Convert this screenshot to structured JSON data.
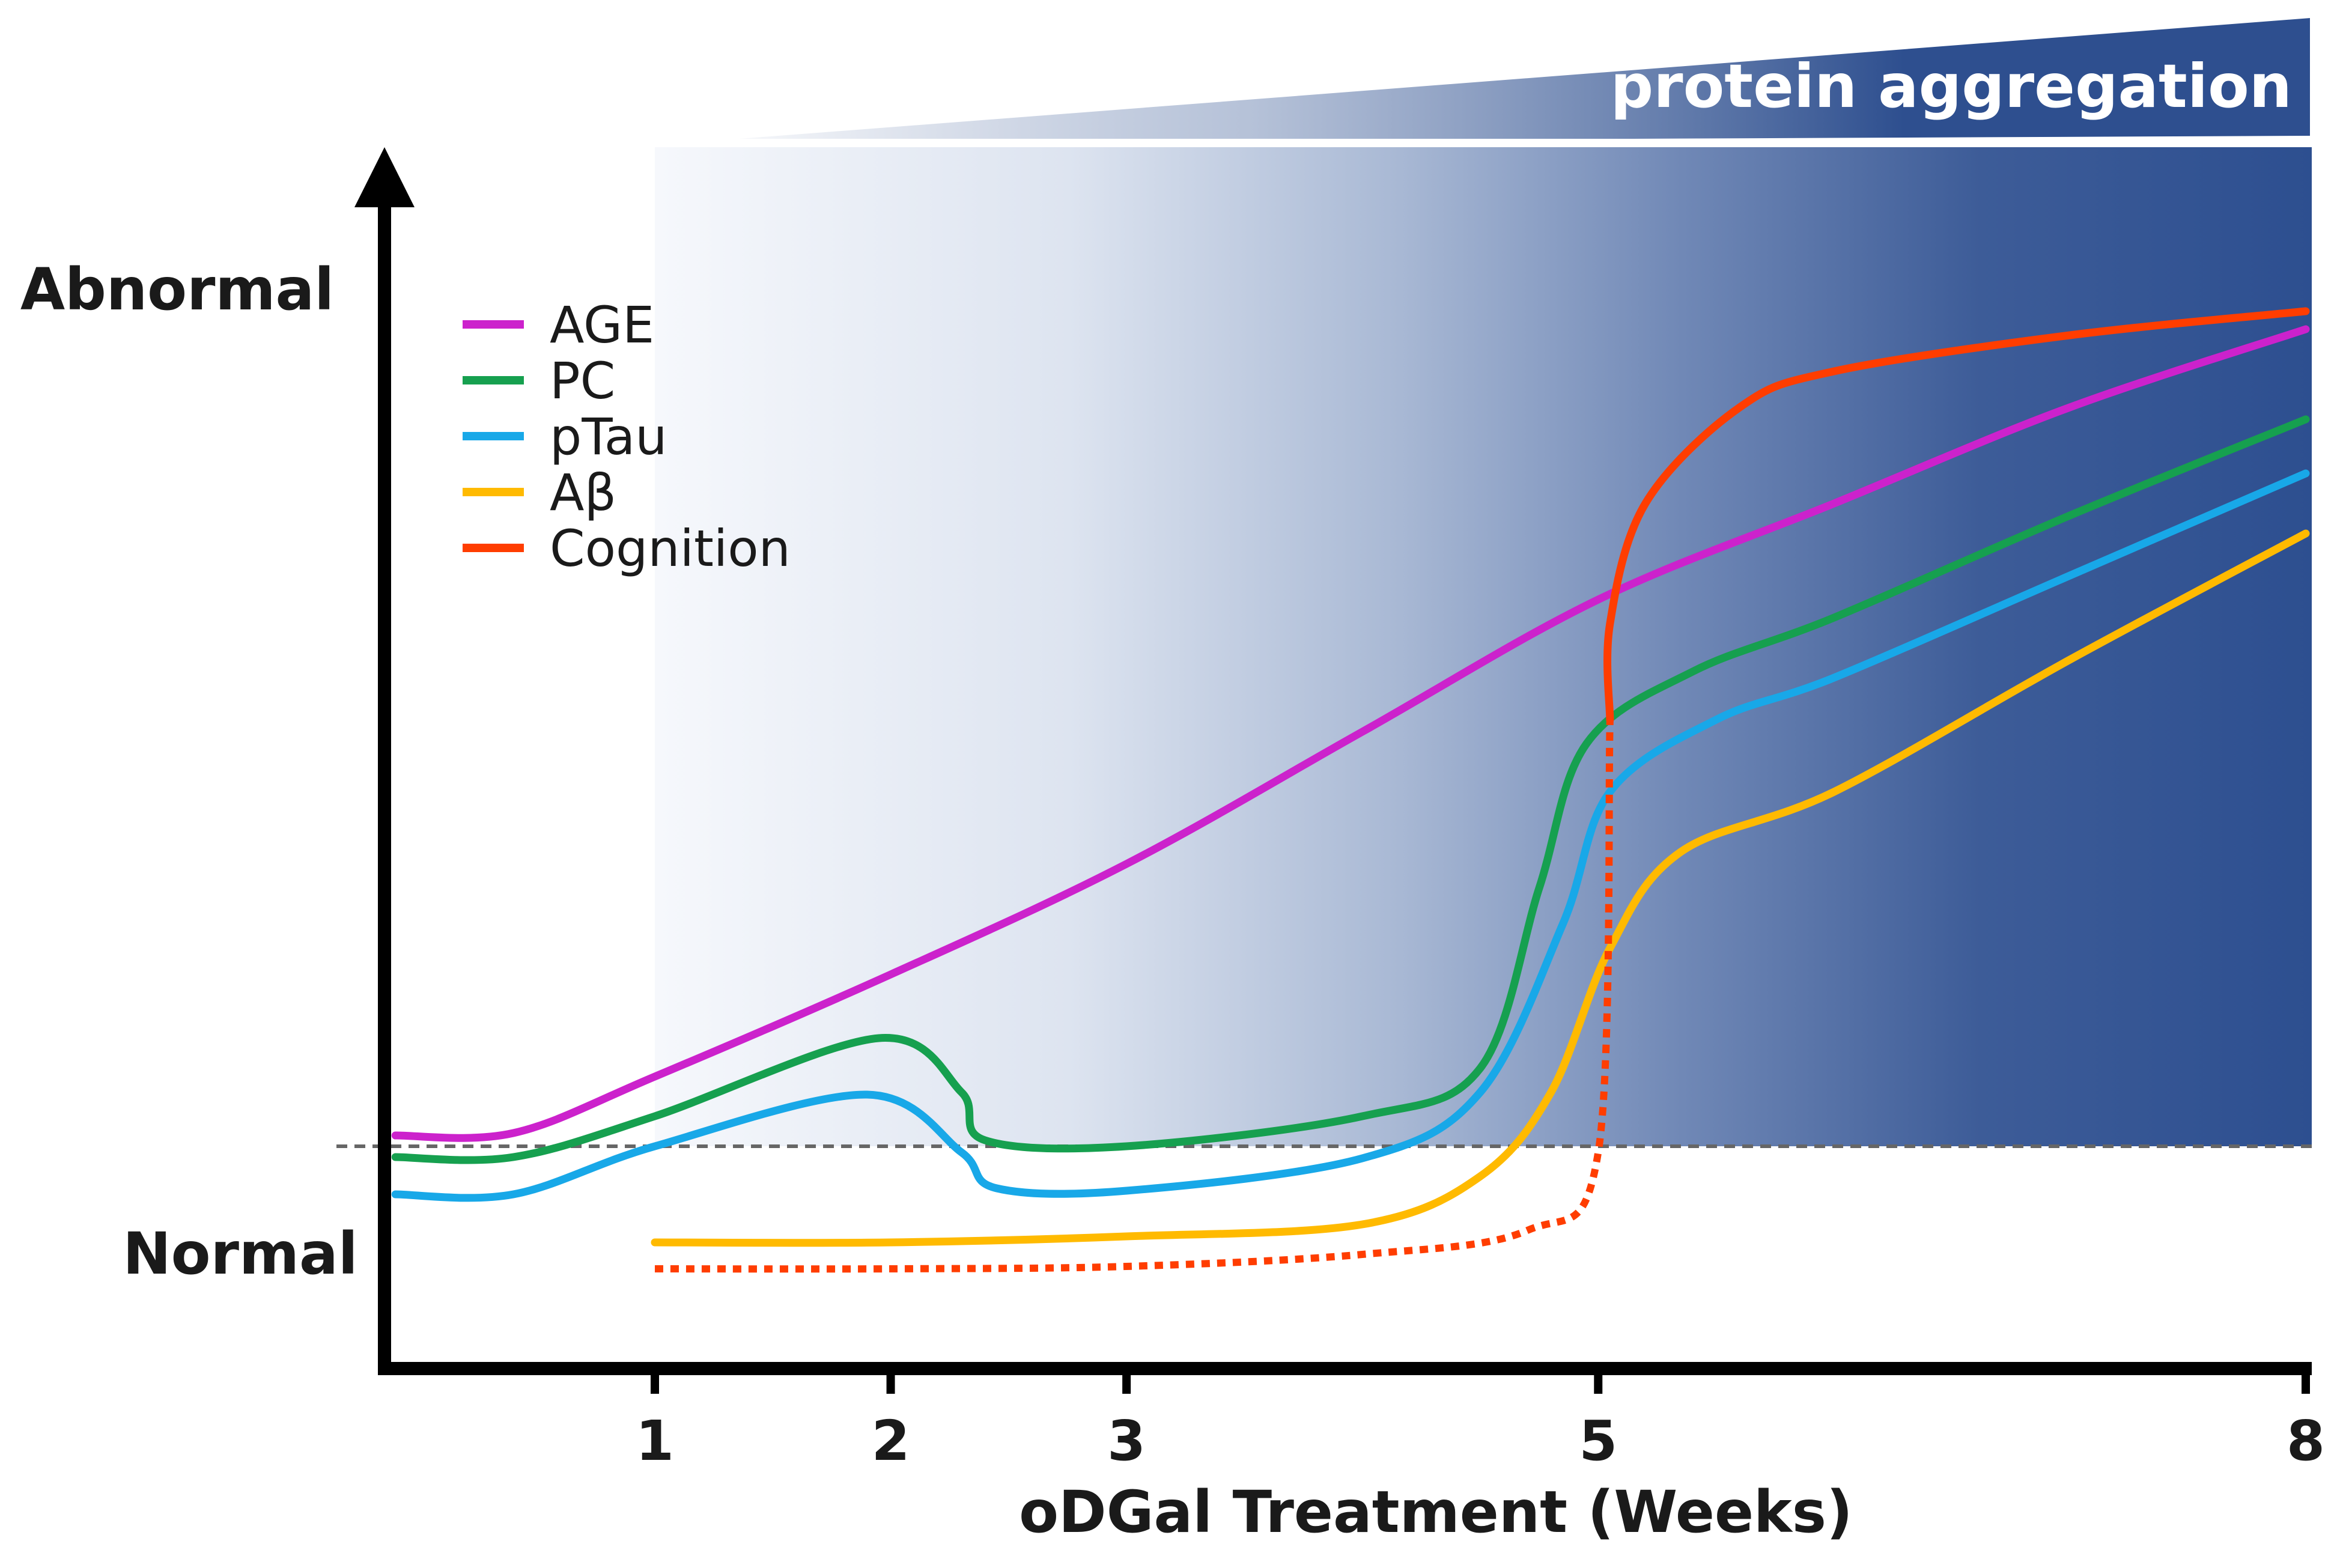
{
  "chart_data": {
    "type": "line",
    "title": "",
    "banner_label": "protein aggregation",
    "xlabel": "oDGal Treatment (Weeks)",
    "ylabel_top": "Abnormal",
    "ylabel_bottom": "Normal",
    "x_ticks": [
      "1",
      "2",
      "3",
      "5",
      "8"
    ],
    "x_tick_values": [
      1,
      2,
      3,
      5,
      8
    ],
    "xlim": [
      -0.4,
      8
    ],
    "ylim": [
      0,
      100
    ],
    "baseline_level": 18.5,
    "gradient_start_week": 1,
    "legend_position": "top-left",
    "series": [
      {
        "name": "AGE",
        "color": "#cc22cc",
        "points": [
          [
            -0.1,
            19.4
          ],
          [
            0.4,
            19.6
          ],
          [
            1,
            24.3
          ],
          [
            2,
            32.8
          ],
          [
            3,
            42
          ],
          [
            4,
            53
          ],
          [
            5,
            64
          ],
          [
            6,
            72
          ],
          [
            7,
            80
          ],
          [
            8,
            86.5
          ]
        ]
      },
      {
        "name": "PC",
        "color": "#16a04f",
        "points": [
          [
            -0.1,
            17.6
          ],
          [
            0.4,
            17.6
          ],
          [
            1,
            21
          ],
          [
            1.95,
            27.5
          ],
          [
            2.3,
            23
          ],
          [
            2.4,
            19
          ],
          [
            3,
            18.5
          ],
          [
            4,
            21
          ],
          [
            4.5,
            25
          ],
          [
            4.75,
            40
          ],
          [
            4.95,
            52
          ],
          [
            5.4,
            58
          ],
          [
            6,
            62.5
          ],
          [
            7,
            71
          ],
          [
            8,
            79
          ]
        ]
      },
      {
        "name": "pTau",
        "color": "#18a8e8",
        "points": [
          [
            -0.1,
            14.5
          ],
          [
            0.4,
            14.5
          ],
          [
            1,
            18.5
          ],
          [
            1.9,
            22.8
          ],
          [
            2.3,
            18
          ],
          [
            2.45,
            15
          ],
          [
            3,
            14.8
          ],
          [
            4,
            17.5
          ],
          [
            4.5,
            23
          ],
          [
            4.85,
            37
          ],
          [
            5.05,
            48
          ],
          [
            5.5,
            54
          ],
          [
            6,
            57.5
          ],
          [
            7,
            66
          ],
          [
            8,
            74.5
          ]
        ]
      },
      {
        "name": "Aβ",
        "color": "#ffba00",
        "points": [
          [
            1,
            10.5
          ],
          [
            2,
            10.5
          ],
          [
            3,
            11
          ],
          [
            4,
            12
          ],
          [
            4.5,
            16
          ],
          [
            4.8,
            23
          ],
          [
            5.05,
            35
          ],
          [
            5.35,
            43
          ],
          [
            6,
            48
          ],
          [
            7,
            59
          ],
          [
            8,
            69.5
          ]
        ]
      },
      {
        "name": "Cognition",
        "color": "#ff3d00",
        "points_dotted": [
          [
            1,
            8.3
          ],
          [
            2,
            8.3
          ],
          [
            3,
            8.5
          ],
          [
            4,
            9.5
          ],
          [
            4.7,
            11.5
          ],
          [
            5.0,
            18
          ],
          [
            5.05,
            54
          ]
        ],
        "points": [
          [
            5.05,
            54
          ],
          [
            5.05,
            62
          ],
          [
            5.2,
            72
          ],
          [
            5.6,
            80
          ],
          [
            6,
            83
          ],
          [
            7,
            86
          ],
          [
            8,
            88
          ]
        ]
      }
    ]
  }
}
